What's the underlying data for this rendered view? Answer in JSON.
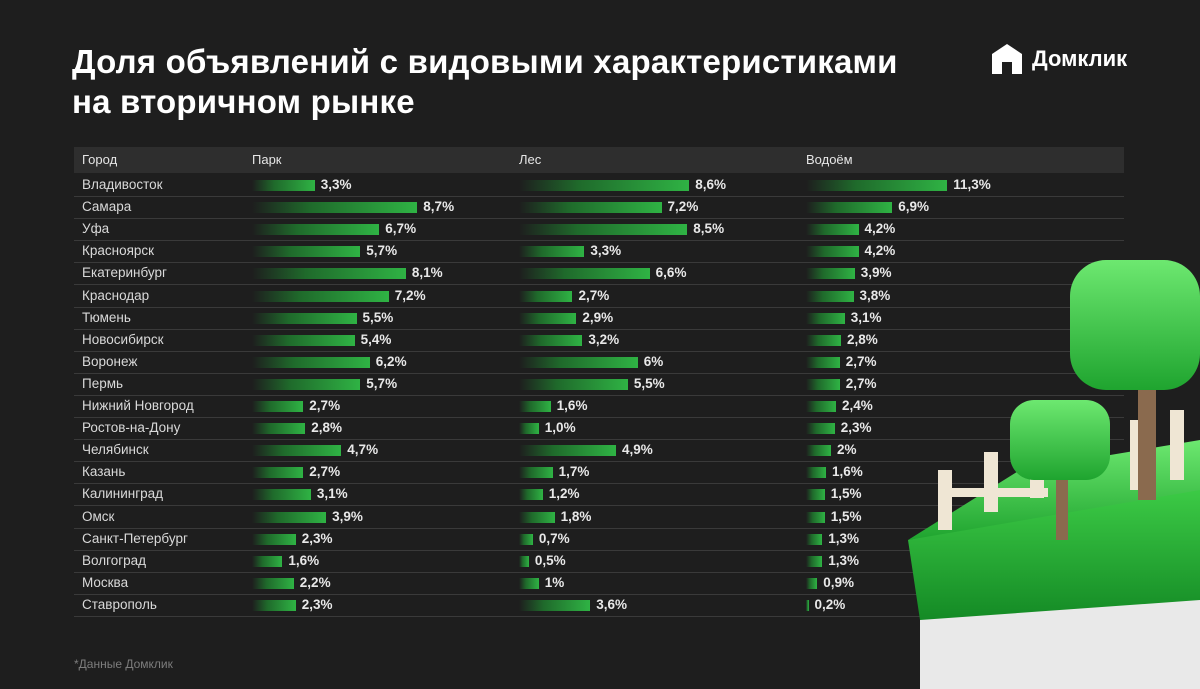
{
  "header": {
    "title_line1": "Доля объявлений с видовыми характеристиками",
    "title_line2": "на вторичном рынке",
    "logo_text": "Домклик"
  },
  "table": {
    "columns": [
      "Город",
      "Парк",
      "Лес",
      "Водоём"
    ]
  },
  "footnote": "*Данные Домклик",
  "colors": {
    "background": "#1e1e1e",
    "bar_green": "#2fb344"
  },
  "chart_data": {
    "type": "bar",
    "categories": [
      "Владивосток",
      "Самара",
      "Уфа",
      "Красноярск",
      "Екатеринбург",
      "Краснодар",
      "Тюмень",
      "Новосибирск",
      "Воронеж",
      "Пермь",
      "Нижний Новгород",
      "Ростов-на-Дону",
      "Челябинск",
      "Казань",
      "Калининград",
      "Омск",
      "Санкт-Петербург",
      "Волгоград",
      "Москва",
      "Ставрополь"
    ],
    "series": [
      {
        "name": "Парк",
        "values": [
          3.3,
          8.7,
          6.7,
          5.7,
          8.1,
          7.2,
          5.5,
          5.4,
          6.2,
          5.7,
          2.7,
          2.8,
          4.7,
          2.7,
          3.1,
          3.9,
          2.3,
          1.6,
          2.2,
          2.3
        ],
        "labels": [
          "3,3%",
          "8,7%",
          "6,7%",
          "5,7%",
          "8,1%",
          "7,2%",
          "5,5%",
          "5,4%",
          "6,2%",
          "5,7%",
          "2,7%",
          "2,8%",
          "4,7%",
          "2,7%",
          "3,1%",
          "3,9%",
          "2,3%",
          "1,6%",
          "2,2%",
          "2,3%"
        ]
      },
      {
        "name": "Лес",
        "values": [
          8.6,
          7.2,
          8.5,
          3.3,
          6.6,
          2.7,
          2.9,
          3.2,
          6,
          5.5,
          1.6,
          1.0,
          4.9,
          1.7,
          1.2,
          1.8,
          0.7,
          0.5,
          1,
          3.6
        ],
        "labels": [
          "8,6%",
          "7,2%",
          "8,5%",
          "3,3%",
          "6,6%",
          "2,7%",
          "2,9%",
          "3,2%",
          "6%",
          "5,5%",
          "1,6%",
          "1,0%",
          "4,9%",
          "1,7%",
          "1,2%",
          "1,8%",
          "0,7%",
          "0,5%",
          "1%",
          "3,6%"
        ]
      },
      {
        "name": "Водоём",
        "values": [
          11.3,
          6.9,
          4.2,
          4.2,
          3.9,
          3.8,
          3.1,
          2.8,
          2.7,
          2.7,
          2.4,
          2.3,
          2,
          1.6,
          1.5,
          1.5,
          1.3,
          1.3,
          0.9,
          0.2
        ],
        "labels": [
          "11,3%",
          "6,9%",
          "4,2%",
          "4,2%",
          "3,9%",
          "3,8%",
          "3,1%",
          "2,8%",
          "2,7%",
          "2,7%",
          "2,4%",
          "2,3%",
          "2%",
          "1,6%",
          "1,5%",
          "1,5%",
          "1,3%",
          "1,3%",
          "0,9%",
          "0,2%"
        ]
      }
    ]
  }
}
